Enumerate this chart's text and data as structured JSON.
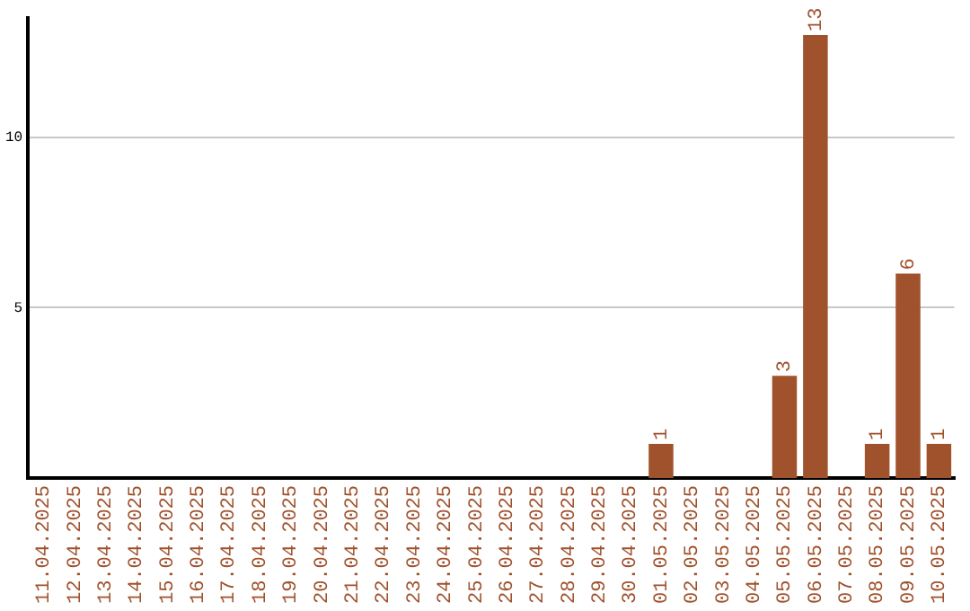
{
  "chart_data": {
    "type": "bar",
    "categories": [
      "11.04.2025",
      "12.04.2025",
      "13.04.2025",
      "14.04.2025",
      "15.04.2025",
      "16.04.2025",
      "17.04.2025",
      "18.04.2025",
      "19.04.2025",
      "20.04.2025",
      "21.04.2025",
      "22.04.2025",
      "23.04.2025",
      "24.04.2025",
      "25.04.2025",
      "26.04.2025",
      "27.04.2025",
      "28.04.2025",
      "29.04.2025",
      "30.04.2025",
      "01.05.2025",
      "02.05.2025",
      "03.05.2025",
      "04.05.2025",
      "05.05.2025",
      "06.05.2025",
      "07.05.2025",
      "08.05.2025",
      "09.05.2025",
      "10.05.2025"
    ],
    "values": [
      0,
      0,
      0,
      0,
      0,
      0,
      0,
      0,
      0,
      0,
      0,
      0,
      0,
      0,
      0,
      0,
      0,
      0,
      0,
      0,
      1,
      0,
      0,
      0,
      3,
      13,
      0,
      1,
      6,
      1
    ],
    "value_labels": [
      null,
      null,
      null,
      null,
      null,
      null,
      null,
      null,
      null,
      null,
      null,
      null,
      null,
      null,
      null,
      null,
      null,
      null,
      null,
      null,
      "1",
      null,
      null,
      null,
      "3",
      "13",
      null,
      "1",
      "6",
      "1"
    ],
    "color": "#a0522d",
    "ylim": [
      0,
      13.5
    ],
    "yticks": [
      5,
      10
    ],
    "grid": "y",
    "legend": false
  }
}
